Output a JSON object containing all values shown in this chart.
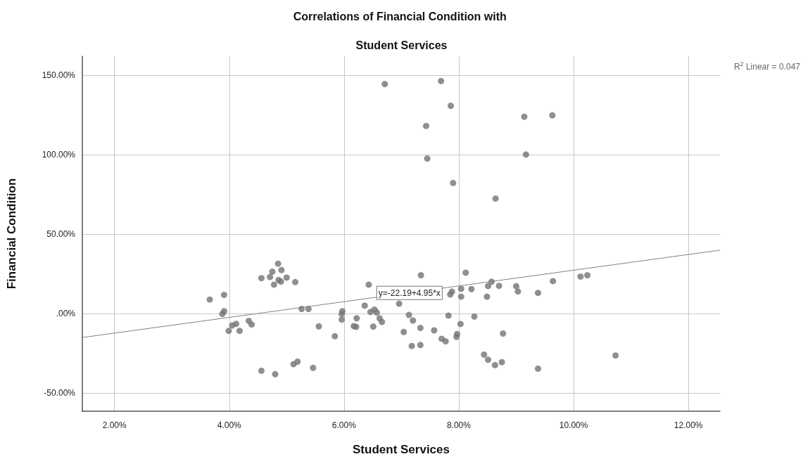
{
  "chart_data": {
    "type": "scatter",
    "title": "Correlations of Financial Condition with Student Services",
    "xlabel": "Student Services",
    "ylabel": "Financial Condition",
    "xlim": [
      1.44,
      12.55
    ],
    "ylim": [
      -61.5,
      162
    ],
    "xticks": [
      {
        "value": 2,
        "label": "2.00%"
      },
      {
        "value": 4,
        "label": "4.00%"
      },
      {
        "value": 6,
        "label": "6.00%"
      },
      {
        "value": 8,
        "label": "8.00%"
      },
      {
        "value": 10,
        "label": "10.00%"
      },
      {
        "value": 12,
        "label": "12.00%"
      }
    ],
    "yticks": [
      {
        "value": -50,
        "label": "-50.00%"
      },
      {
        "value": 0,
        "label": ".00%"
      },
      {
        "value": 50,
        "label": "50.00%"
      },
      {
        "value": 100,
        "label": "100.00%"
      },
      {
        "value": 150,
        "label": "150.00%"
      }
    ],
    "grid": true,
    "marker": "circle",
    "series": [
      {
        "color": "#737373",
        "x": [
          6.71,
          7.69,
          7.86,
          7.43,
          7.45,
          7.9,
          8.64,
          9.14,
          9.63,
          9.17,
          3.66,
          3.91,
          3.91,
          3.88,
          4.05,
          4.12,
          3.99,
          4.18,
          4.34,
          4.39,
          4.56,
          4.75,
          4.85,
          4.91,
          4.71,
          4.86,
          4.9,
          4.78,
          5.0,
          5.15,
          5.26,
          5.38,
          5.56,
          5.84,
          5.97,
          5.96,
          5.96,
          6.22,
          6.17,
          6.21,
          6.51,
          6.36,
          6.43,
          6.46,
          6.53,
          6.57,
          6.62,
          6.66,
          4.56,
          4.8,
          5.12,
          5.19,
          5.46,
          7.34,
          8.12,
          6.96,
          7.13,
          7.2,
          7.04,
          7.33,
          7.57,
          7.7,
          7.77,
          7.18,
          7.33,
          7.82,
          7.85,
          7.88,
          8.04,
          8.04,
          8.22,
          8.27,
          8.03,
          7.97,
          7.96,
          8.49,
          8.51,
          8.57,
          8.7,
          9.0,
          9.03,
          9.38,
          9.64,
          10.12,
          10.24,
          8.77,
          8.44,
          8.51,
          8.63,
          8.75,
          9.38,
          10.73
        ],
        "values": [
          144.5,
          146.4,
          130.8,
          118.1,
          97.6,
          82.2,
          72.4,
          123.9,
          124.8,
          100.1,
          8.8,
          11.7,
          1.5,
          -0.3,
          -7.5,
          -6.5,
          -10.9,
          -10.9,
          -4.6,
          -6.9,
          22.3,
          26.4,
          31.4,
          27.4,
          23.0,
          21.1,
          20.1,
          18.2,
          22.6,
          19.8,
          2.9,
          2.9,
          -8.1,
          -14.3,
          1.5,
          -0.3,
          -3.8,
          -3.0,
          -7.9,
          -8.4,
          -8.2,
          5.0,
          18.2,
          1.0,
          2.5,
          0.6,
          -3.0,
          -5.3,
          -36.0,
          -38.2,
          -31.9,
          -30.3,
          -34.2,
          24.1,
          25.7,
          6.2,
          -0.9,
          -4.4,
          -11.6,
          -9.1,
          -10.6,
          -15.9,
          -17.5,
          -20.4,
          -19.8,
          -1.3,
          12.0,
          13.8,
          15.6,
          10.6,
          15.4,
          -1.9,
          -6.6,
          -12.9,
          -14.7,
          10.6,
          17.3,
          20.0,
          17.4,
          17.2,
          13.9,
          13.0,
          20.4,
          23.3,
          24.1,
          -12.6,
          -25.9,
          -29.1,
          -32.5,
          -30.6,
          -34.7,
          -26.4
        ]
      },
      {
        "type": "line",
        "color": "#808080",
        "marker": "none",
        "x": [
          1.44,
          12.55
        ],
        "values": [
          -15.1,
          39.9
        ]
      }
    ],
    "annotations": [
      {
        "text": "y=-22.19+4.95*x",
        "x": 7.14,
        "y": 13
      },
      "R$^{2}$ Linear = 0.047"
    ]
  }
}
